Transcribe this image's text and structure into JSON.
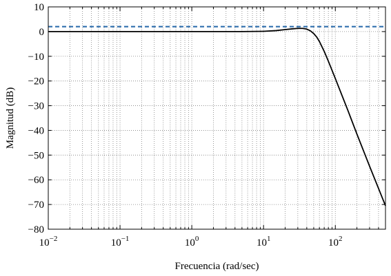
{
  "chart_data": {
    "type": "line",
    "title": "",
    "xlabel": "Frecuencia (rad/sec)",
    "ylabel": "Magnitud (dB)",
    "xscale": "log",
    "xlim": [
      0.01,
      500
    ],
    "ylim": [
      -80,
      10
    ],
    "grid": true,
    "grid_style": "dotted",
    "x_ticks": [
      {
        "value": 0.01,
        "base": "10",
        "exp": "−2"
      },
      {
        "value": 0.1,
        "base": "10",
        "exp": "−1"
      },
      {
        "value": 1,
        "base": "10",
        "exp": "0"
      },
      {
        "value": 10,
        "base": "10",
        "exp": "1"
      },
      {
        "value": 100,
        "base": "10",
        "exp": "2"
      }
    ],
    "y_ticks": [
      {
        "value": 10,
        "label": "10"
      },
      {
        "value": 0,
        "label": "0"
      },
      {
        "value": -10,
        "label": "−10"
      },
      {
        "value": -20,
        "label": "−20"
      },
      {
        "value": -30,
        "label": "−30"
      },
      {
        "value": -40,
        "label": "−40"
      },
      {
        "value": -50,
        "label": "−50"
      },
      {
        "value": -60,
        "label": "−60"
      },
      {
        "value": -70,
        "label": "−70"
      },
      {
        "value": -80,
        "label": "−80"
      }
    ],
    "series": [
      {
        "style": "solid",
        "color": "#000000",
        "x": [
          0.01,
          0.1,
          1,
          5,
          10,
          15,
          20,
          25,
          30,
          35,
          40,
          45,
          50,
          55,
          60,
          70,
          80,
          100,
          150,
          200,
          300,
          400,
          500
        ],
        "y": [
          0,
          0,
          0,
          0,
          0.1,
          0.4,
          0.8,
          1.1,
          1.3,
          1.3,
          1.0,
          0.3,
          -0.8,
          -2.2,
          -4.0,
          -8.0,
          -12.0,
          -19.0,
          -32.0,
          -41.5,
          -54.5,
          -63.5,
          -70.5
        ]
      },
      {
        "style": "dashed",
        "color": "#2e6fad",
        "x": [
          0.01,
          500
        ],
        "y": [
          2,
          2
        ]
      }
    ]
  }
}
